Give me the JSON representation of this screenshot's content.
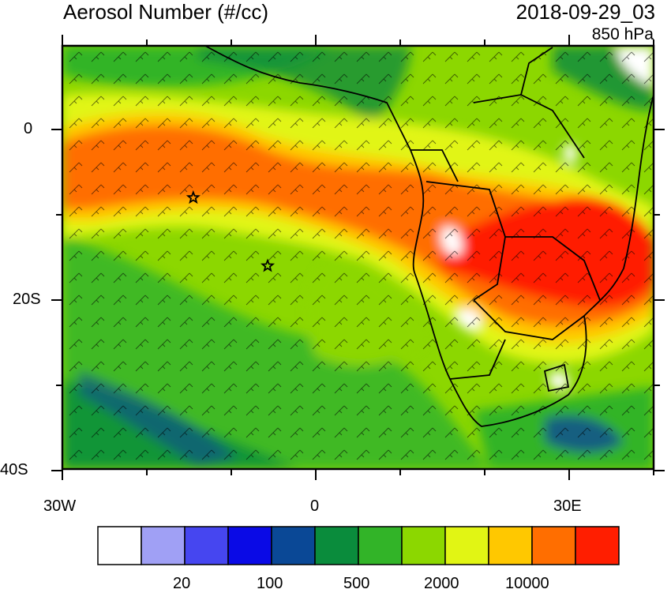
{
  "header": {
    "title": "Aerosol Number (#/cc)",
    "datetime": "2018-09-29_03",
    "level": "850 hPa"
  },
  "axes": {
    "lat_labels": [
      "0",
      "20S",
      "40S"
    ],
    "lon_labels": [
      "30W",
      "0",
      "30E"
    ]
  },
  "colorbar": {
    "colors": [
      "#ffffff",
      "#a0a0f5",
      "#4646f0",
      "#0a0ae6",
      "#0a4896",
      "#0a8c3c",
      "#32b428",
      "#8cd700",
      "#e1f514",
      "#ffc800",
      "#ff6e00",
      "#ff1e00"
    ],
    "labels": [
      "20",
      "100",
      "500",
      "2000",
      "10000"
    ]
  },
  "markers": [
    {
      "label": "star",
      "lon": -14.5,
      "lat": -8
    },
    {
      "label": "star",
      "lon": -5.7,
      "lat": -16
    }
  ]
}
